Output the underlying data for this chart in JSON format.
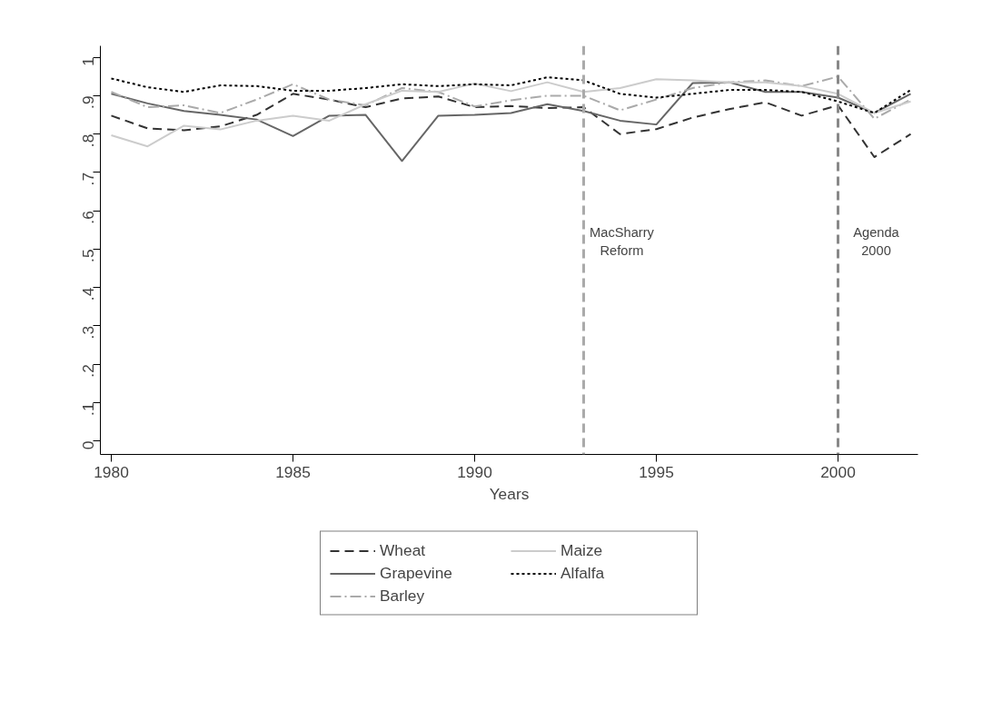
{
  "chart_data": {
    "type": "line",
    "xlabel": "Years",
    "x": [
      1980,
      1981,
      1982,
      1983,
      1984,
      1985,
      1986,
      1987,
      1988,
      1989,
      1990,
      1991,
      1992,
      1993,
      1994,
      1995,
      1996,
      1997,
      1998,
      1999,
      2000,
      2001,
      2002
    ],
    "series": [
      {
        "name": "Wheat",
        "color": "#333333",
        "line_style": "dashed",
        "values": [
          0.848,
          0.815,
          0.81,
          0.82,
          0.85,
          0.905,
          0.89,
          0.87,
          0.893,
          0.898,
          0.87,
          0.873,
          0.868,
          0.87,
          0.8,
          0.813,
          0.843,
          0.865,
          0.883,
          0.848,
          0.875,
          0.74,
          0.8
        ]
      },
      {
        "name": "Grapevine",
        "color": "#666666",
        "line_style": "solid",
        "values": [
          0.905,
          0.88,
          0.86,
          0.85,
          0.838,
          0.795,
          0.848,
          0.85,
          0.73,
          0.848,
          0.85,
          0.855,
          0.878,
          0.86,
          0.835,
          0.825,
          0.933,
          0.935,
          0.91,
          0.91,
          0.895,
          0.855,
          0.905
        ]
      },
      {
        "name": "Barley",
        "color": "#aaaaaa",
        "line_style": "dashdot",
        "values": [
          0.91,
          0.87,
          0.875,
          0.855,
          0.89,
          0.93,
          0.89,
          0.875,
          0.92,
          0.91,
          0.872,
          0.888,
          0.9,
          0.9,
          0.862,
          0.89,
          0.92,
          0.935,
          0.94,
          0.925,
          0.95,
          0.84,
          0.89
        ]
      },
      {
        "name": "Maize",
        "color": "#cccccc",
        "line_style": "solid",
        "values": [
          0.797,
          0.768,
          0.822,
          0.812,
          0.835,
          0.848,
          0.835,
          0.878,
          0.913,
          0.91,
          0.932,
          0.912,
          0.935,
          0.91,
          0.92,
          0.943,
          0.94,
          0.935,
          0.935,
          0.925,
          0.905,
          0.855,
          0.885
        ]
      },
      {
        "name": "Alfalfa",
        "color": "#000000",
        "line_style": "dotted",
        "values": [
          0.945,
          0.922,
          0.91,
          0.927,
          0.925,
          0.913,
          0.913,
          0.92,
          0.93,
          0.925,
          0.93,
          0.927,
          0.948,
          0.94,
          0.905,
          0.895,
          0.905,
          0.915,
          0.915,
          0.91,
          0.885,
          0.855,
          0.915
        ]
      }
    ],
    "xlim": [
      1979.7,
      2002.2
    ],
    "xticks": [
      1980,
      1985,
      1990,
      1995,
      2000
    ],
    "ylim": [
      -0.035,
      1.03
    ],
    "yticks": [
      0,
      {
        "value": 0.1,
        "label": ".1"
      },
      {
        "value": 0.2,
        "label": ".2"
      },
      {
        "value": 0.3,
        "label": ".3"
      },
      {
        "value": 0.4,
        "label": ".4"
      },
      {
        "value": 0.5,
        "label": ".5"
      },
      {
        "value": 0.6,
        "label": ".6"
      },
      {
        "value": 0.7,
        "label": ".7"
      },
      {
        "value": 0.8,
        "label": ".8"
      },
      {
        "value": 0.9,
        "label": ".9"
      },
      1
    ],
    "ref_lines": [
      {
        "axis": "x",
        "value": 1993,
        "label": "MacSharry\nReform",
        "color": "#aaaaaa",
        "line_style": "dashed"
      },
      {
        "axis": "x",
        "value": 2000,
        "label": "Agenda\n2000",
        "color": "#888888",
        "line_style": "dashed"
      }
    ],
    "grid": false,
    "legend": "bottom",
    "marker": "none"
  }
}
